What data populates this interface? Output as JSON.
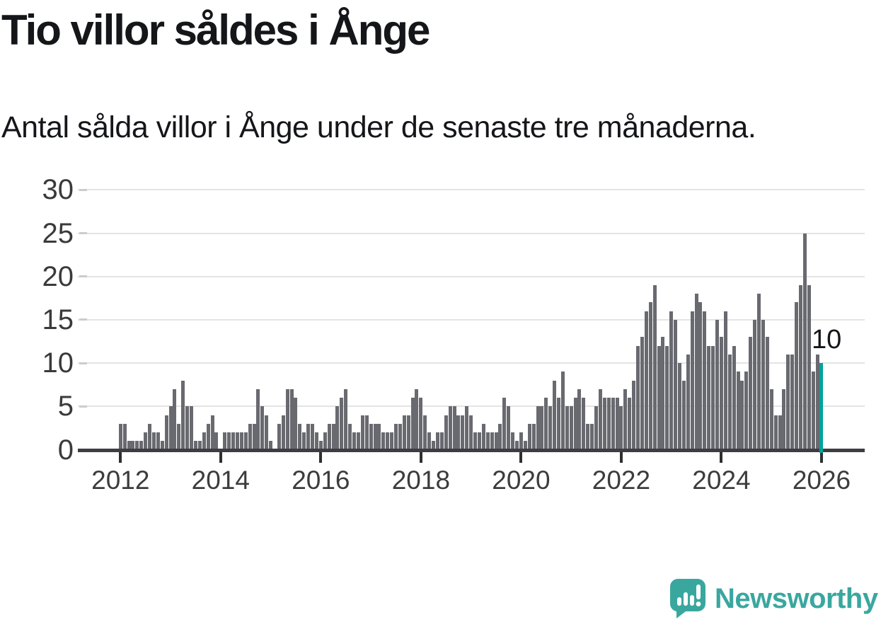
{
  "header": {
    "title": "Tio villor såldes i Ånge",
    "subtitle": "Antal sålda villor i Ånge under de senaste tre månaderna."
  },
  "chart_data": {
    "type": "bar",
    "title": "Tio villor såldes i Ånge",
    "subtitle": "Antal sålda villor i Ånge under de senaste tre månaderna.",
    "x_start": "2012-01",
    "x_end": "2026-01",
    "x_freq": "monthly",
    "values": [
      3,
      3,
      1,
      1,
      1,
      1,
      2,
      3,
      2,
      2,
      1,
      4,
      5,
      7,
      3,
      8,
      5,
      5,
      1,
      1,
      2,
      3,
      4,
      2,
      0,
      2,
      2,
      2,
      2,
      2,
      2,
      3,
      3,
      7,
      5,
      4,
      1,
      0,
      3,
      4,
      7,
      7,
      6,
      3,
      2,
      3,
      3,
      2,
      1,
      2,
      3,
      3,
      5,
      6,
      7,
      3,
      2,
      2,
      4,
      4,
      3,
      3,
      3,
      2,
      2,
      2,
      3,
      3,
      4,
      4,
      6,
      7,
      6,
      4,
      2,
      1,
      2,
      2,
      4,
      5,
      5,
      4,
      4,
      5,
      4,
      2,
      2,
      3,
      2,
      2,
      2,
      3,
      6,
      5,
      2,
      1,
      2,
      1,
      3,
      3,
      5,
      5,
      6,
      5,
      8,
      6,
      9,
      5,
      5,
      6,
      7,
      6,
      3,
      3,
      5,
      7,
      6,
      6,
      6,
      6,
      5,
      7,
      6,
      8,
      12,
      13,
      16,
      17,
      19,
      12,
      13,
      12,
      16,
      15,
      10,
      8,
      11,
      16,
      18,
      17,
      16,
      12,
      12,
      15,
      13,
      16,
      11,
      12,
      9,
      8,
      9,
      13,
      15,
      18,
      15,
      13,
      7,
      4,
      4,
      7,
      11,
      11,
      17,
      19,
      25,
      19,
      9,
      11,
      10
    ],
    "highlight_index": 168,
    "annotation": {
      "text": "10",
      "value": 10
    },
    "ylim": [
      0,
      30
    ],
    "y_ticks": [
      0,
      5,
      10,
      15,
      20,
      25,
      30
    ],
    "x_tick_years": [
      2012,
      2014,
      2016,
      2018,
      2020,
      2022,
      2024,
      2026
    ],
    "grid": true,
    "legend": "none",
    "bar_color": "#696970",
    "highlight_color": "#00a29a",
    "grid_color": "#e4e4e4",
    "axis_color": "#3d3d42"
  },
  "footer": {
    "brand": "Newsworthy",
    "brand_color": "#3aa79f",
    "logo_icon": "newsworthy-chart-bubble-icon"
  }
}
